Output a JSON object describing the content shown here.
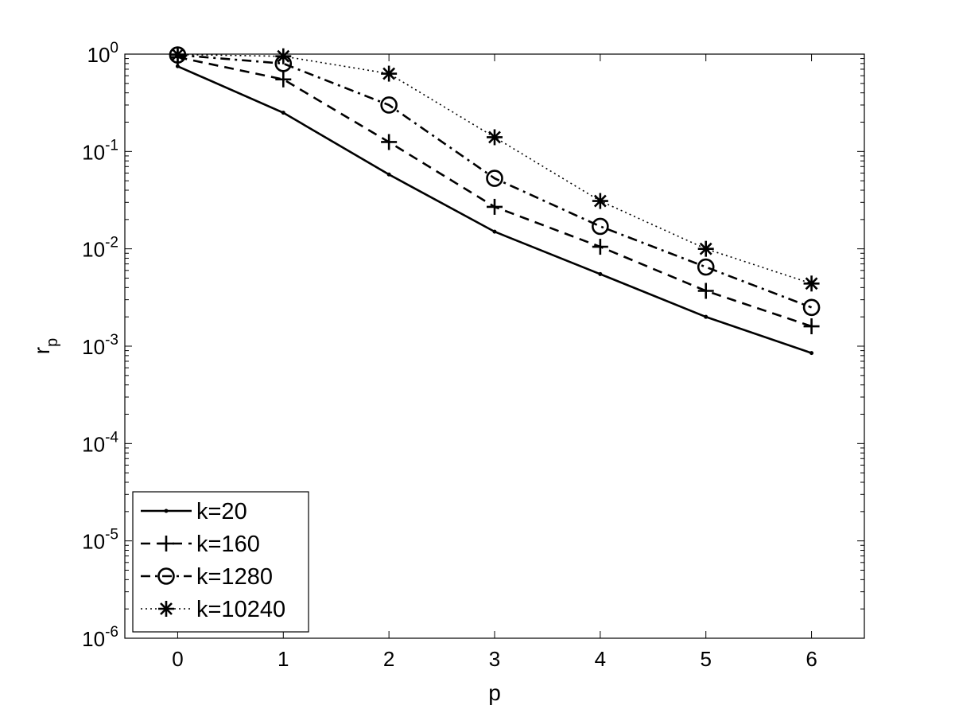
{
  "chart_data": {
    "type": "line",
    "title": "",
    "xlabel": "p",
    "ylabel": "r",
    "ylabel_subscript": "p",
    "x": [
      0,
      1,
      2,
      3,
      4,
      5,
      6
    ],
    "xlim": [
      -0.5,
      6.5
    ],
    "ylim": [
      1e-06,
      1
    ],
    "yscale": "log",
    "x_tick_labels": [
      "0",
      "1",
      "2",
      "3",
      "4",
      "5",
      "6"
    ],
    "y_ticks": [
      {
        "value": 1,
        "base": "10",
        "exp": "0"
      },
      {
        "value": 0.1,
        "base": "10",
        "exp": "-1"
      },
      {
        "value": 0.01,
        "base": "10",
        "exp": "-2"
      },
      {
        "value": 0.001,
        "base": "10",
        "exp": "-3"
      },
      {
        "value": 0.0001,
        "base": "10",
        "exp": "-4"
      },
      {
        "value": 1e-05,
        "base": "10",
        "exp": "-5"
      },
      {
        "value": 1e-06,
        "base": "10",
        "exp": "-6"
      }
    ],
    "grid": false,
    "legend_position": "bottom-left",
    "series": [
      {
        "name": "k=20",
        "values": [
          0.75,
          0.25,
          0.058,
          0.015,
          0.0055,
          0.002,
          0.00085
        ],
        "line_style": "solid",
        "marker": "point",
        "color": "#000000"
      },
      {
        "name": "k=160",
        "values": [
          0.93,
          0.55,
          0.125,
          0.027,
          0.0105,
          0.0037,
          0.0016
        ],
        "line_style": "dashed",
        "marker": "plus",
        "color": "#000000"
      },
      {
        "name": "k=1280",
        "values": [
          0.98,
          0.8,
          0.3,
          0.053,
          0.017,
          0.0065,
          0.0025
        ],
        "line_style": "dashdot",
        "marker": "circle",
        "color": "#000000"
      },
      {
        "name": "k=10240",
        "values": [
          0.99,
          0.95,
          0.63,
          0.14,
          0.031,
          0.01,
          0.0044
        ],
        "line_style": "dotted",
        "marker": "star",
        "color": "#000000"
      }
    ]
  }
}
